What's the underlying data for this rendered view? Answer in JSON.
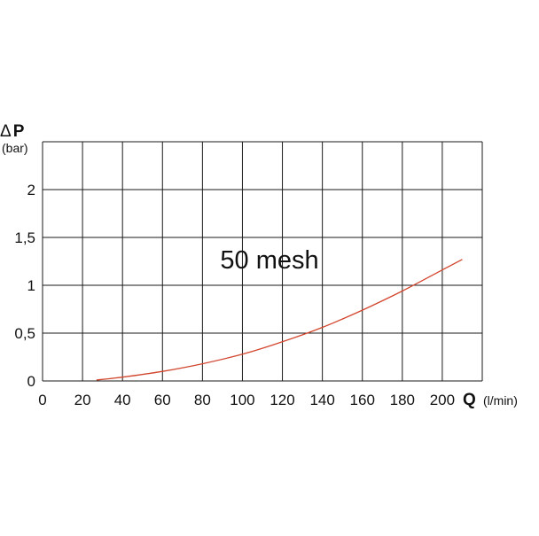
{
  "chart_data": {
    "type": "line",
    "title": "",
    "annotation": "50 mesh",
    "y_axis": {
      "symbol": "ΔP",
      "symbol_delta": "Δ",
      "symbol_letter": "P",
      "unit": "(bar)",
      "ylim": [
        0,
        2.5
      ],
      "ticks": [
        0,
        0.5,
        1,
        1.5,
        2
      ],
      "tick_labels": [
        "0",
        "0,5",
        "1",
        "1,5",
        "2"
      ]
    },
    "x_axis": {
      "symbol": "Q",
      "unit": "(l/min)",
      "xlim": [
        0,
        220
      ],
      "ticks": [
        0,
        20,
        40,
        60,
        80,
        100,
        120,
        140,
        160,
        180,
        200
      ],
      "tick_labels": [
        "0",
        "20",
        "40",
        "60",
        "80",
        "100",
        "120",
        "140",
        "160",
        "180",
        "200"
      ]
    },
    "grid": true,
    "series": [
      {
        "color": "#d2462e",
        "x": [
          27,
          40,
          60,
          80,
          100,
          120,
          140,
          160,
          180,
          200,
          210
        ],
        "y": [
          0.01,
          0.04,
          0.1,
          0.18,
          0.28,
          0.41,
          0.56,
          0.74,
          0.94,
          1.16,
          1.27
        ]
      }
    ]
  }
}
